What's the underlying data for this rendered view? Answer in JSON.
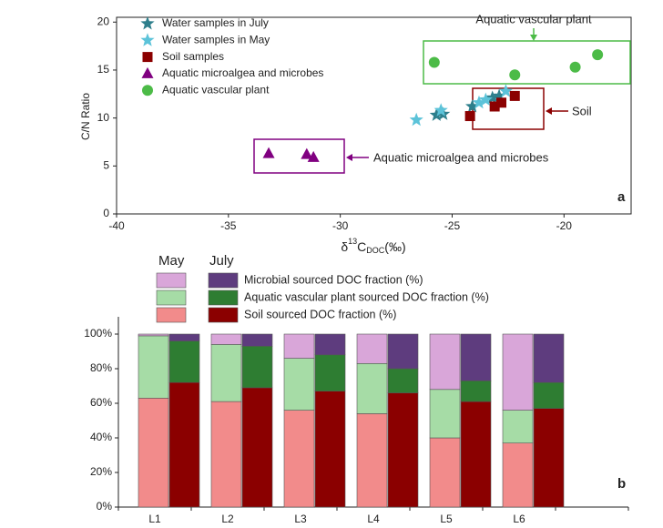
{
  "chart_data": [
    {
      "type": "scatter",
      "y_label": "C/N Ratio",
      "x_label_parts": [
        "δ",
        "13",
        "C",
        "DOC",
        "(‰)"
      ],
      "xlim": [
        -40,
        -17
      ],
      "xticks": [
        -40,
        -35,
        -30,
        -25,
        -20
      ],
      "ylim": [
        0,
        20.5
      ],
      "yticks": [
        0,
        5,
        10,
        15,
        20
      ],
      "annotations": [
        "Aquatic vascular plant",
        "Soil",
        "Aquatic microalgea and microbes"
      ],
      "panel_label": "a",
      "series": [
        {
          "name": "Water samples in July",
          "color": "#2e7f8c",
          "marker": "star",
          "x": [
            -25.7,
            -25.4,
            -24.1,
            -23.2,
            -22.9
          ],
          "y": [
            10.3,
            10.4,
            11.2,
            12.1,
            12.3
          ]
        },
        {
          "name": "Water samples in May",
          "color": "#5cc3d9",
          "marker": "star",
          "x": [
            -26.6,
            -25.5,
            -23.8,
            -23.5,
            -22.6
          ],
          "y": [
            9.8,
            10.8,
            11.6,
            11.9,
            12.8
          ]
        },
        {
          "name": "Soil samples",
          "color": "#8b0000",
          "marker": "square",
          "x": [
            -24.2,
            -23.1,
            -22.8,
            -22.2
          ],
          "y": [
            10.2,
            11.2,
            11.6,
            12.3
          ]
        },
        {
          "name": "Aquatic microalgea and microbes",
          "color": "#800080",
          "marker": "triangle",
          "x": [
            -33.2,
            -31.5,
            -31.2
          ],
          "y": [
            6.3,
            6.2,
            5.9
          ]
        },
        {
          "name": "Aquatic vascular plant",
          "color": "#4cbb47",
          "marker": "circle",
          "x": [
            -25.8,
            -22.2,
            -19.5,
            -18.5
          ],
          "y": [
            15.8,
            14.5,
            15.3,
            16.6
          ]
        }
      ]
    },
    {
      "type": "stacked_bar",
      "categories": [
        "L1",
        "L2",
        "L3",
        "L4",
        "L5",
        "L6"
      ],
      "months": [
        "May",
        "July"
      ],
      "ylim": [
        0,
        110
      ],
      "yticks": [
        {
          "value": 0,
          "label": "0%"
        },
        {
          "value": 20,
          "label": "20%"
        },
        {
          "value": 40,
          "label": "40%"
        },
        {
          "value": 60,
          "label": "60%"
        },
        {
          "value": 80,
          "label": "80%"
        },
        {
          "value": 100,
          "label": "100%"
        }
      ],
      "panel_label": "b",
      "series": [
        {
          "name": "Soil sourced DOC fraction (%)",
          "colors": [
            "#f28b8b",
            "#8b0000"
          ],
          "values": [
            [
              63,
              61,
              56,
              54,
              40,
              37
            ],
            [
              72,
              69,
              67,
              66,
              61,
              57
            ]
          ]
        },
        {
          "name": "Aquatic vascular plant sourced DOC fraction (%)",
          "colors": [
            "#a6dca6",
            "#2e7d32"
          ],
          "values": [
            [
              36,
              33,
              30,
              29,
              28,
              19
            ],
            [
              24,
              24,
              21,
              14,
              12,
              15
            ]
          ]
        },
        {
          "name": "Microbial sourced DOC fraction (%)",
          "colors": [
            "#d9a6d9",
            "#5e3c7e"
          ],
          "values": [
            [
              1,
              6,
              14,
              17,
              32,
              44
            ],
            [
              4,
              7,
              12,
              20,
              27,
              28
            ]
          ]
        }
      ]
    }
  ]
}
